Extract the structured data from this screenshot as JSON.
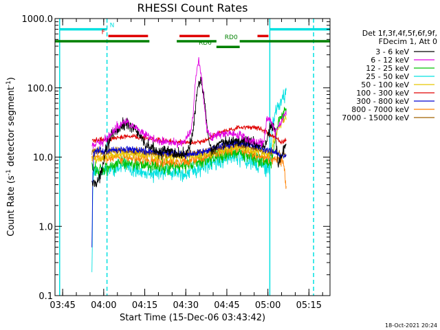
{
  "chart_data": {
    "type": "line",
    "title": "RHESSI Count Rates",
    "xlabel": "Start Time (15-Dec-06 03:43:42)",
    "ylabel_main": "Count Rate (s",
    "ylabel_sup1": "-1",
    "ylabel_mid": " detector segment",
    "ylabel_sup2": "-1",
    "ylabel_end": ")",
    "x_unit": "minutes after 03:43:42",
    "xlim": [
      -1.5,
      99
    ],
    "ylim": [
      0.1,
      1000
    ],
    "y_scale": "log",
    "x_ticks": [
      {
        "value": 1.3,
        "label": "03:45"
      },
      {
        "value": 16.3,
        "label": "04:00"
      },
      {
        "value": 31.3,
        "label": "04:15"
      },
      {
        "value": 46.3,
        "label": "04:30"
      },
      {
        "value": 61.3,
        "label": "04:45"
      },
      {
        "value": 76.3,
        "label": "05:00"
      },
      {
        "value": 91.3,
        "label": "05:15"
      }
    ],
    "y_ticks": [
      {
        "value": 0.1,
        "label": "0.1"
      },
      {
        "value": 1,
        "label": "1.0"
      },
      {
        "value": 10,
        "label": "10.0"
      },
      {
        "value": 100,
        "label": "100.0"
      },
      {
        "value": 1000,
        "label": "1000.0"
      }
    ],
    "legend": {
      "placement": "right",
      "header1": "Det 1f,3f,4f,5f,6f,9f,",
      "header2": "FDecim 1, Att 0"
    },
    "series": [
      {
        "name": "3 - 6 keV",
        "color": "#000000",
        "noise": 0.1,
        "x": [
          12,
          13,
          14,
          15,
          16,
          17,
          19,
          21,
          23,
          25,
          27,
          29,
          30,
          31,
          33,
          35,
          37,
          39,
          41,
          43,
          45,
          46,
          47,
          48,
          48.5,
          49,
          50,
          51,
          52,
          53,
          54,
          55,
          56,
          57,
          58,
          59,
          61,
          63,
          65,
          67,
          69,
          71,
          73,
          75,
          76,
          77,
          78,
          79,
          80,
          81,
          82,
          83
        ],
        "y": [
          4.0,
          4.3,
          4.5,
          5,
          8,
          14,
          19,
          24,
          28,
          31,
          27,
          22,
          18,
          16,
          14,
          13,
          12,
          12,
          12,
          11,
          11,
          11,
          13,
          16,
          18,
          25,
          60,
          110,
          125,
          70,
          30,
          15,
          12,
          14,
          15,
          15,
          16,
          17,
          17,
          17,
          17,
          16,
          15,
          14,
          18,
          26,
          28,
          23,
          8,
          10,
          13,
          16
        ]
      },
      {
        "name": "6 - 12 keV",
        "color": "#e000e0",
        "noise": 0.07,
        "x": [
          12,
          13,
          15,
          17,
          19,
          21,
          23,
          25,
          27,
          29,
          31,
          33,
          35,
          37,
          39,
          41,
          43,
          45,
          46,
          47,
          48,
          49,
          50,
          51,
          52,
          53,
          54,
          55,
          57,
          59,
          61,
          63,
          65,
          67,
          69,
          71,
          73,
          74,
          75,
          76,
          77,
          78,
          79,
          80,
          81,
          82,
          83
        ],
        "y": [
          14,
          15,
          16,
          18,
          22,
          27,
          32,
          33,
          28,
          24,
          21,
          19,
          18,
          17,
          17,
          16,
          16,
          16,
          17,
          20,
          22,
          40,
          150,
          240,
          150,
          60,
          25,
          20,
          20,
          21,
          22,
          22,
          21,
          20,
          18,
          17,
          16,
          16,
          18,
          38,
          35,
          30,
          22,
          26,
          32,
          40,
          42
        ]
      },
      {
        "name": "12 - 25 keV",
        "color": "#00c000",
        "noise": 0.12,
        "x": [
          12,
          13,
          17,
          21,
          25,
          29,
          33,
          37,
          41,
          45,
          49,
          53,
          57,
          61,
          65,
          69,
          73,
          75,
          77,
          78,
          79,
          80,
          81,
          82,
          83
        ],
        "y": [
          7.0,
          6.5,
          7.0,
          8.0,
          8.5,
          8.0,
          7.5,
          7.2,
          7.2,
          7.3,
          8.0,
          9.0,
          10.0,
          11.0,
          11.5,
          10.5,
          9.0,
          8.5,
          8.0,
          10,
          20,
          30,
          38,
          42,
          45
        ]
      },
      {
        "name": "25 - 50 keV",
        "color": "#00e0e0",
        "noise": 0.14,
        "x": [
          12,
          12.3,
          12.6,
          13,
          17,
          21,
          25,
          29,
          33,
          37,
          41,
          45,
          49,
          53,
          57,
          61,
          65,
          69,
          73,
          75,
          77,
          78,
          79,
          80,
          81,
          82,
          83
        ],
        "y": [
          0.2,
          3,
          6,
          6.0,
          6.5,
          7.0,
          7.2,
          6.5,
          6.0,
          5.8,
          5.8,
          5.9,
          6.5,
          7.5,
          8.5,
          9.5,
          10,
          9.0,
          7.5,
          7.0,
          6.5,
          30,
          45,
          55,
          65,
          75,
          85
        ]
      },
      {
        "name": "50 - 100 keV",
        "color": "#e6c800",
        "noise": 0.08,
        "x": [
          12,
          13,
          17,
          21,
          25,
          29,
          33,
          37,
          41,
          45,
          49,
          53,
          57,
          61,
          65,
          69,
          73,
          77,
          78,
          79,
          80,
          81,
          82,
          83
        ],
        "y": [
          9.0,
          9.5,
          10,
          11,
          11.5,
          11,
          10.5,
          10,
          10,
          10,
          10.5,
          11,
          12,
          13,
          14,
          13,
          12,
          11,
          14,
          20,
          25,
          30,
          35,
          40
        ]
      },
      {
        "name": "100 - 300 keV",
        "color": "#e00000",
        "noise": 0.04,
        "x": [
          12,
          13,
          17,
          21,
          25,
          29,
          33,
          37,
          41,
          45,
          49,
          53,
          57,
          61,
          65,
          69,
          73,
          75,
          77,
          79,
          80,
          81,
          82,
          83
        ],
        "y": [
          17,
          17.5,
          18,
          19,
          20,
          19.5,
          18.5,
          17.5,
          17,
          16.5,
          16,
          17,
          21,
          24,
          26,
          27,
          26,
          24,
          21,
          20,
          18,
          16,
          17,
          18
        ]
      },
      {
        "name": "300 - 800 keV",
        "color": "#0000d0",
        "noise": 0.06,
        "x": [
          12,
          12.3,
          12.6,
          13,
          17,
          21,
          25,
          29,
          33,
          37,
          41,
          45,
          49,
          53,
          57,
          61,
          65,
          69,
          73,
          77,
          79,
          80,
          81,
          82,
          83
        ],
        "y": [
          0.5,
          5,
          10,
          12,
          12.5,
          13,
          13,
          12.5,
          12,
          11.5,
          11.5,
          11,
          11,
          12,
          13.5,
          15,
          16,
          15.5,
          14,
          12.5,
          12,
          11,
          10.5,
          10.5,
          10
        ]
      },
      {
        "name": "800 - 7000 keV",
        "color": "#ff8000",
        "noise": 0.08,
        "x": [
          12,
          13,
          17,
          21,
          25,
          29,
          33,
          37,
          41,
          45,
          49,
          53,
          57,
          61,
          65,
          69,
          73,
          77,
          79,
          80,
          81,
          82,
          83
        ],
        "y": [
          9.5,
          9.5,
          9.5,
          10,
          10,
          9.5,
          9.0,
          8.5,
          8.5,
          8.5,
          9.0,
          10,
          11.5,
          12.5,
          13,
          12,
          10.5,
          9.5,
          9.0,
          9.0,
          9.0,
          9.0,
          3.5
        ]
      },
      {
        "name": "7000 - 15000 keV",
        "color": "#a06000",
        "noise": 0.06,
        "x": [
          12,
          13,
          17,
          21,
          25,
          29,
          33,
          37,
          41,
          45,
          49,
          53,
          57,
          61,
          65,
          69,
          73,
          77,
          79,
          80,
          81,
          82,
          83
        ],
        "y": [
          12,
          12,
          12,
          12.5,
          12.5,
          12,
          11.5,
          11,
          11,
          11,
          11.5,
          12,
          13,
          14,
          15,
          14,
          13,
          12,
          11.5,
          11,
          11,
          10.5,
          10.5
        ]
      }
    ],
    "vertical_lines": [
      {
        "x": 0.2,
        "color": "#00e0e0",
        "style": "solid"
      },
      {
        "x": 17.5,
        "color": "#00e0e0",
        "style": "dashed"
      },
      {
        "x": 77.0,
        "color": "#00e0e0",
        "style": "solid"
      },
      {
        "x": 93.0,
        "color": "#00e0e0",
        "style": "dashed"
      }
    ],
    "flag_bars": [
      {
        "label": "N",
        "color": "#00e0e0",
        "y": 700,
        "segments": [
          [
            0.2,
            17.5
          ],
          [
            77,
            99
          ]
        ],
        "label_x": 18.5
      },
      {
        "label": "F",
        "color": "#e00000",
        "y": 560,
        "segments": [
          [
            18,
            32.5
          ],
          [
            44,
            55
          ],
          [
            72.5,
            76.5
          ]
        ],
        "label_x": 15.5
      },
      {
        "label": "RD0",
        "color": "#008000",
        "y": 470,
        "segments": [
          [
            -1.5,
            33
          ],
          [
            43,
            57.5
          ],
          [
            66,
            99
          ]
        ],
        "label_x": 60.5
      },
      {
        "label": "RD6",
        "color": "#008000",
        "y": 390,
        "segments": [
          [
            57.5,
            66
          ]
        ],
        "label_x": 51
      }
    ]
  },
  "footer_date": "18-Oct-2021 20:24"
}
